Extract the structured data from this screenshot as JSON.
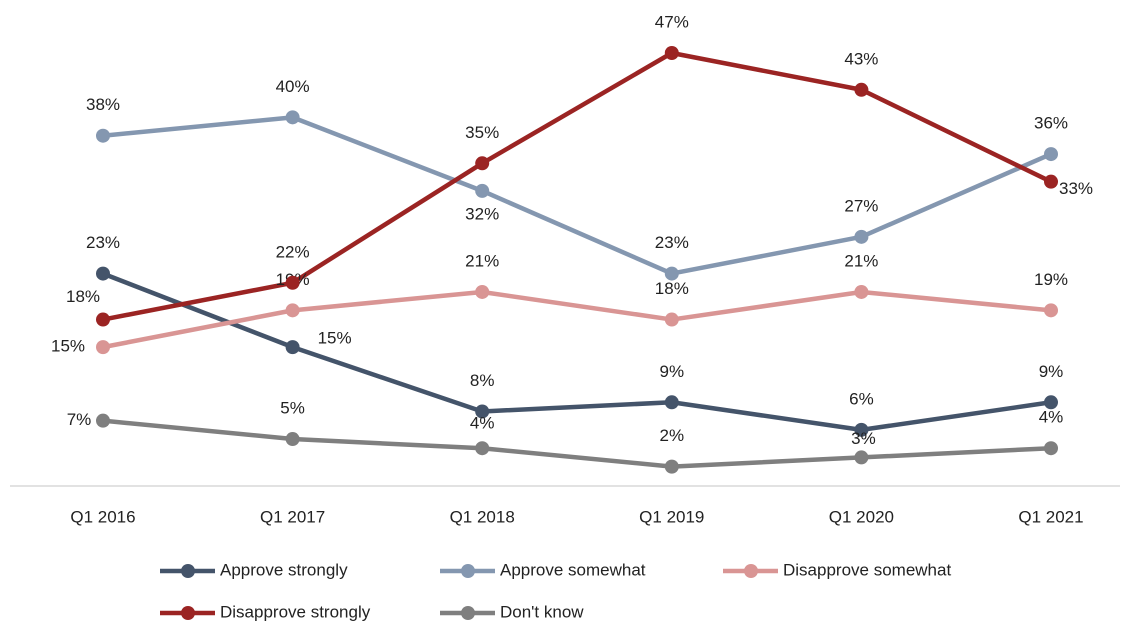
{
  "chart_data": {
    "type": "line",
    "categories": [
      "Q1 2016",
      "Q1 2017",
      "Q1 2018",
      "Q1 2019",
      "Q1 2020",
      "Q1 2021"
    ],
    "series": [
      {
        "name": "Approve strongly",
        "color": "#44546a",
        "values": [
          23,
          15,
          8,
          9,
          6,
          9
        ],
        "value_labels": [
          "23%",
          "15%",
          "8%",
          "9%",
          "6%",
          "9%"
        ]
      },
      {
        "name": "Approve somewhat",
        "color": "#8497b0",
        "values": [
          38,
          40,
          32,
          23,
          27,
          36
        ],
        "value_labels": [
          "38%",
          "40%",
          "32%",
          "23%",
          "27%",
          "36%"
        ]
      },
      {
        "name": "Disapprove somewhat",
        "color": "#d99594",
        "values": [
          15,
          19,
          21,
          18,
          21,
          19
        ],
        "value_labels": [
          "15%",
          "19%",
          "21%",
          "18%",
          "21%",
          "19%"
        ]
      },
      {
        "name": "Disapprove strongly",
        "color": "#9b2423",
        "values": [
          18,
          22,
          35,
          47,
          43,
          33
        ],
        "value_labels": [
          "18%",
          "22%",
          "35%",
          "47%",
          "43%",
          "33%"
        ]
      },
      {
        "name": "Don't know",
        "color": "#7f7f7f",
        "values": [
          7,
          5,
          4,
          2,
          3,
          4
        ],
        "value_labels": [
          "7%",
          "5%",
          "4%",
          "2%",
          "3%",
          "4%"
        ]
      }
    ]
  }
}
